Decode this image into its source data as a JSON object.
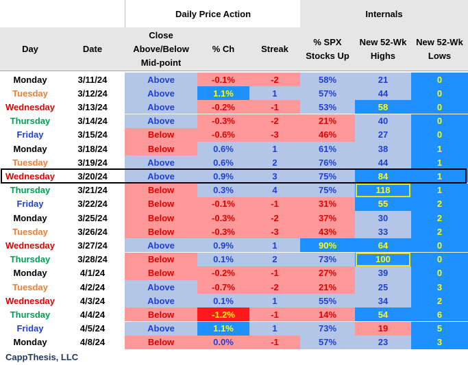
{
  "colors": {
    "above": "#b4c6e7",
    "below": "#ff9999",
    "pos_blue": "#1e90ff",
    "neg_red": "#ff1a1a",
    "light_red": "#ff9999",
    "highlight_yellow": "#f5e400",
    "header_gray": "#e7e6e6",
    "text_blue": "#1f3fd6",
    "text_red": "#e00000",
    "text_yellow": "#ffff00",
    "day_mon": "#000000",
    "day_tue": "#ed7d31",
    "day_wed": "#e00000",
    "day_thu": "#00a050",
    "day_fri": "#1f3fd6"
  },
  "group_headers": {
    "daily": "Daily Price Action",
    "internals": "Internals"
  },
  "columns": {
    "day": "Day",
    "date": "Date",
    "close": [
      "Close",
      "Above/Below",
      "Mid-point"
    ],
    "pct": "% Ch",
    "streak": "Streak",
    "spx": [
      "% SPX",
      "Stocks Up"
    ],
    "highs": [
      "New 52-Wk",
      "Highs"
    ],
    "lows": [
      "New 52-Wk",
      "Lows"
    ]
  },
  "rows": [
    {
      "day": "Monday",
      "date": "3/11/24",
      "close": "Above",
      "pct": "-0.1%",
      "streak": "-2",
      "spx": "58%",
      "highs": "21",
      "lows": "0"
    },
    {
      "day": "Tuesday",
      "date": "3/12/24",
      "close": "Above",
      "pct": "1.1%",
      "streak": "1",
      "spx": "57%",
      "highs": "44",
      "lows": "0"
    },
    {
      "day": "Wednesday",
      "date": "3/13/24",
      "close": "Above",
      "pct": "-0.2%",
      "streak": "-1",
      "spx": "53%",
      "highs": "58",
      "lows": "0"
    },
    {
      "day": "Thursday",
      "date": "3/14/24",
      "close": "Above",
      "pct": "-0.3%",
      "streak": "-2",
      "spx": "21%",
      "highs": "40",
      "lows": "0"
    },
    {
      "day": "Friday",
      "date": "3/15/24",
      "close": "Below",
      "pct": "-0.6%",
      "streak": "-3",
      "spx": "46%",
      "highs": "27",
      "lows": "0"
    },
    {
      "day": "Monday",
      "date": "3/18/24",
      "close": "Below",
      "pct": "0.6%",
      "streak": "1",
      "spx": "61%",
      "highs": "38",
      "lows": "1"
    },
    {
      "day": "Tuesday",
      "date": "3/19/24",
      "close": "Above",
      "pct": "0.6%",
      "streak": "2",
      "spx": "76%",
      "highs": "44",
      "lows": "1"
    },
    {
      "day": "Wednesday",
      "date": "3/20/24",
      "close": "Above",
      "pct": "0.9%",
      "streak": "3",
      "spx": "75%",
      "highs": "84",
      "lows": "1"
    },
    {
      "day": "Thursday",
      "date": "3/21/24",
      "close": "Below",
      "pct": "0.3%",
      "streak": "4",
      "spx": "75%",
      "highs": "118",
      "lows": "1"
    },
    {
      "day": "Friday",
      "date": "3/22/24",
      "close": "Below",
      "pct": "-0.1%",
      "streak": "-1",
      "spx": "31%",
      "highs": "55",
      "lows": "2"
    },
    {
      "day": "Monday",
      "date": "3/25/24",
      "close": "Below",
      "pct": "-0.3%",
      "streak": "-2",
      "spx": "37%",
      "highs": "30",
      "lows": "2"
    },
    {
      "day": "Tuesday",
      "date": "3/26/24",
      "close": "Below",
      "pct": "-0.3%",
      "streak": "-3",
      "spx": "43%",
      "highs": "33",
      "lows": "2"
    },
    {
      "day": "Wednesday",
      "date": "3/27/24",
      "close": "Above",
      "pct": "0.9%",
      "streak": "1",
      "spx": "90%",
      "highs": "64",
      "lows": "0"
    },
    {
      "day": "Thursday",
      "date": "3/28/24",
      "close": "Below",
      "pct": "0.1%",
      "streak": "2",
      "spx": "73%",
      "highs": "100",
      "lows": "0"
    },
    {
      "day": "Monday",
      "date": "4/1/24",
      "close": "Below",
      "pct": "-0.2%",
      "streak": "-1",
      "spx": "27%",
      "highs": "39",
      "lows": "0"
    },
    {
      "day": "Tuesday",
      "date": "4/2/24",
      "close": "Above",
      "pct": "-0.7%",
      "streak": "-2",
      "spx": "21%",
      "highs": "25",
      "lows": "3"
    },
    {
      "day": "Wednesday",
      "date": "4/3/24",
      "close": "Above",
      "pct": "0.1%",
      "streak": "1",
      "spx": "55%",
      "highs": "34",
      "lows": "2"
    },
    {
      "day": "Thursday",
      "date": "4/4/24",
      "close": "Below",
      "pct": "-1.2%",
      "streak": "-1",
      "spx": "14%",
      "highs": "54",
      "lows": "6"
    },
    {
      "day": "Friday",
      "date": "4/5/24",
      "close": "Above",
      "pct": "1.1%",
      "streak": "1",
      "spx": "73%",
      "highs": "19",
      "lows": "5"
    },
    {
      "day": "Monday",
      "date": "4/8/24",
      "close": "Below",
      "pct": "0.0%",
      "streak": "-1",
      "spx": "57%",
      "highs": "23",
      "lows": "3"
    }
  ],
  "footer": "CappThesis, LLC"
}
